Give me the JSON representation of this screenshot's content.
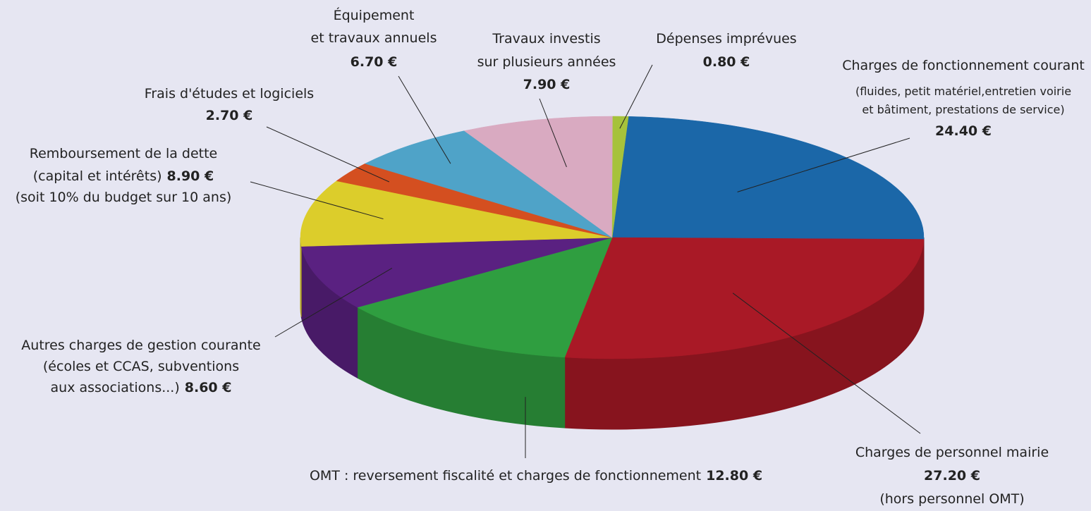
{
  "chart_data": {
    "type": "pie3d",
    "categories": [
      "Charges de fonctionnement courant",
      "Charges de personnel mairie",
      "OMT : reversement fiscalité et charges de fonctionnement",
      "Autres charges de gestion courante",
      "Remboursement de la dette",
      "Frais d'études et logiciels",
      "Équipement",
      "Travaux investis",
      "Dépenses imprévues"
    ],
    "details": [
      [
        "(fluides, petit matériel,entretien voirie",
        "et bâtiment, prestations de service)"
      ],
      [
        "(hors personnel OMT)"
      ],
      [],
      [
        "(écoles et CCAS, subventions",
        "aux associations...)"
      ],
      [
        "(capital et intérêts)",
        "(soit 10% du budget sur 10 ans)"
      ],
      [],
      [
        "et travaux annuels"
      ],
      [
        "sur plusieurs années"
      ],
      []
    ],
    "values": [
      24.4,
      27.2,
      12.8,
      8.6,
      8.9,
      2.7,
      6.7,
      7.9,
      0.8
    ],
    "value_labels": [
      "24.40 €",
      "27.20 €",
      "12.80 €",
      "8.60 €",
      "8.90 €",
      "2.70 €",
      "6.70 €",
      "7.90 €",
      "0.80 €"
    ],
    "colors": [
      "#1b67a8",
      "#a91926",
      "#2f9e40",
      "#5a2181",
      "#dccd2b",
      "#d44f20",
      "#4fa3c8",
      "#d9aac1",
      "#a6c23b"
    ]
  }
}
